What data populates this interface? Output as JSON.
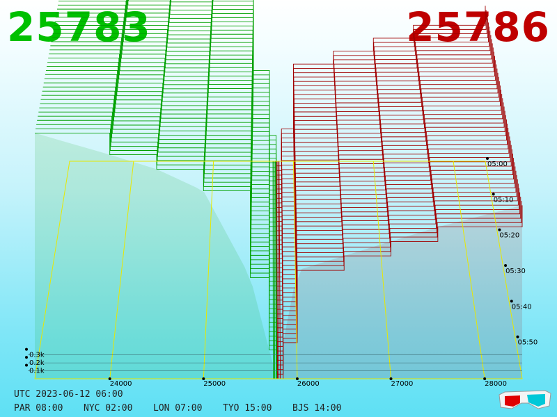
{
  "header": {
    "bid": "25783",
    "ask": "25786"
  },
  "colors": {
    "bid": "#00a000",
    "ask": "#a00000",
    "grid": "#e8e800",
    "bg_top": "#ffffff",
    "bg_bottom": "#5ee0f4"
  },
  "chart_data": {
    "type": "area",
    "x_ticks": [
      "24000",
      "25000",
      "26000",
      "27000",
      "28000"
    ],
    "y_ticks": [
      "0.3k",
      "0.2k",
      "0.1k"
    ],
    "time_ticks": [
      "05:00",
      "05:10",
      "05:20",
      "05:30",
      "05:40",
      "05:50"
    ],
    "x_range": [
      23200,
      28400
    ],
    "y_range": [
      0,
      0.9
    ],
    "mid_price": 25784.5,
    "bid_series": [
      {
        "price": 23200,
        "depth": 0.68
      },
      {
        "price": 24000,
        "depth": 0.62
      },
      {
        "price": 24500,
        "depth": 0.58
      },
      {
        "price": 25000,
        "depth": 0.52
      },
      {
        "price": 25500,
        "depth": 0.28
      },
      {
        "price": 25700,
        "depth": 0.08
      },
      {
        "price": 25783,
        "depth": 0.0
      }
    ],
    "ask_series": [
      {
        "price": 25786,
        "depth": 0.0
      },
      {
        "price": 25850,
        "depth": 0.1
      },
      {
        "price": 26000,
        "depth": 0.3
      },
      {
        "price": 26500,
        "depth": 0.34
      },
      {
        "price": 27000,
        "depth": 0.38
      },
      {
        "price": 27500,
        "depth": 0.42
      },
      {
        "price": 28400,
        "depth": 0.48
      }
    ]
  },
  "footer": {
    "utc": "UTC 2023-06-12 06:00",
    "zones": [
      "PAR 08:00",
      "NYC 02:00",
      "LON 07:00",
      "TYO 15:00",
      "BJS 14:00"
    ]
  },
  "icons": {
    "glasses": "3d-glasses-icon"
  }
}
